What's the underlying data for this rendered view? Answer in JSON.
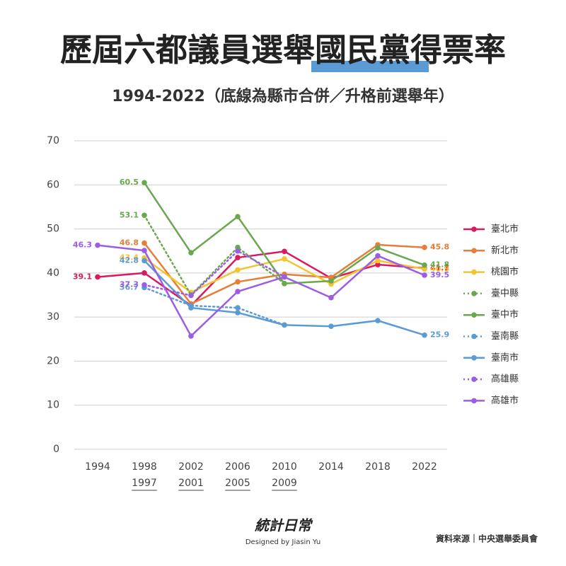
{
  "chart_data": {
    "type": "line",
    "title": "歷屆六都議員選舉國民黨得票率",
    "subtitle": "1994-2022（底線為縣市合併／升格前選舉年）",
    "categories": [
      "1994",
      "1998",
      "2002",
      "2006",
      "2010",
      "2014",
      "2018",
      "2022"
    ],
    "sub_categories": [
      null,
      "1997",
      "2001",
      "2005",
      "2009",
      null,
      null,
      null
    ],
    "ylim": [
      0,
      70
    ],
    "yticks": [
      0,
      10,
      20,
      30,
      40,
      50,
      60,
      70
    ],
    "grid": true,
    "legend": "right",
    "series": [
      {
        "name": "臺北市",
        "color": "#d81b60",
        "dashed": false,
        "values": [
          39.1,
          40.0,
          32.6,
          43.5,
          44.9,
          38.8,
          41.9,
          41.1
        ],
        "value_labels": [
          "39.1",
          null,
          null,
          null,
          null,
          null,
          null,
          "41.1"
        ]
      },
      {
        "name": "新北市",
        "color": "#e67e3a",
        "dashed": false,
        "values": [
          null,
          46.8,
          33.0,
          38.0,
          39.7,
          39.0,
          46.4,
          45.8
        ],
        "value_labels": [
          null,
          "46.8",
          null,
          null,
          null,
          null,
          null,
          "45.8"
        ]
      },
      {
        "name": "桃園市",
        "color": "#f4c430",
        "dashed": false,
        "values": [
          null,
          43.4,
          35.6,
          40.7,
          43.2,
          37.5,
          42.8,
          40.9
        ],
        "value_labels": [
          null,
          "43.4",
          null,
          null,
          null,
          null,
          null,
          "40.9"
        ]
      },
      {
        "name": "臺中縣",
        "color": "#6aa84f",
        "dashed": true,
        "values": [
          null,
          53.1,
          35.0,
          45.8,
          37.6,
          null,
          null,
          null
        ],
        "value_labels": [
          null,
          "53.1",
          null,
          null,
          null,
          null,
          null,
          null
        ]
      },
      {
        "name": "臺中市",
        "color": "#6aa84f",
        "dashed": false,
        "values": [
          null,
          60.5,
          44.6,
          52.8,
          37.6,
          38.2,
          45.7,
          41.8
        ],
        "value_labels": [
          null,
          "60.5",
          null,
          null,
          null,
          null,
          null,
          "41.8"
        ]
      },
      {
        "name": "臺南縣",
        "color": "#5b9bd5",
        "dashed": true,
        "values": [
          null,
          36.7,
          32.6,
          32.1,
          28.2,
          null,
          null,
          null
        ],
        "value_labels": [
          null,
          "36.7",
          null,
          null,
          null,
          null,
          null,
          null
        ]
      },
      {
        "name": "臺南市",
        "color": "#5b9bd5",
        "dashed": false,
        "values": [
          null,
          42.8,
          32.1,
          31.0,
          28.2,
          27.9,
          29.2,
          25.9
        ],
        "value_labels": [
          null,
          "42.8",
          null,
          null,
          null,
          null,
          null,
          "25.9"
        ]
      },
      {
        "name": "高雄縣",
        "color": "#9b5de5",
        "dashed": true,
        "values": [
          null,
          37.3,
          34.9,
          45.0,
          39.1,
          null,
          null,
          null
        ],
        "value_labels": [
          null,
          "37.3",
          null,
          null,
          null,
          null,
          null,
          null
        ]
      },
      {
        "name": "高雄市",
        "color": "#9b5de5",
        "dashed": false,
        "values": [
          46.3,
          45.1,
          25.7,
          35.8,
          39.1,
          34.4,
          43.9,
          39.5
        ],
        "value_labels": [
          "46.3",
          null,
          null,
          null,
          null,
          null,
          null,
          "39.5"
        ]
      }
    ]
  },
  "footer": {
    "logo": "統計日常",
    "designer": "Designed by Jiasin Yu",
    "source": "資料來源｜中央選舉委員會"
  }
}
